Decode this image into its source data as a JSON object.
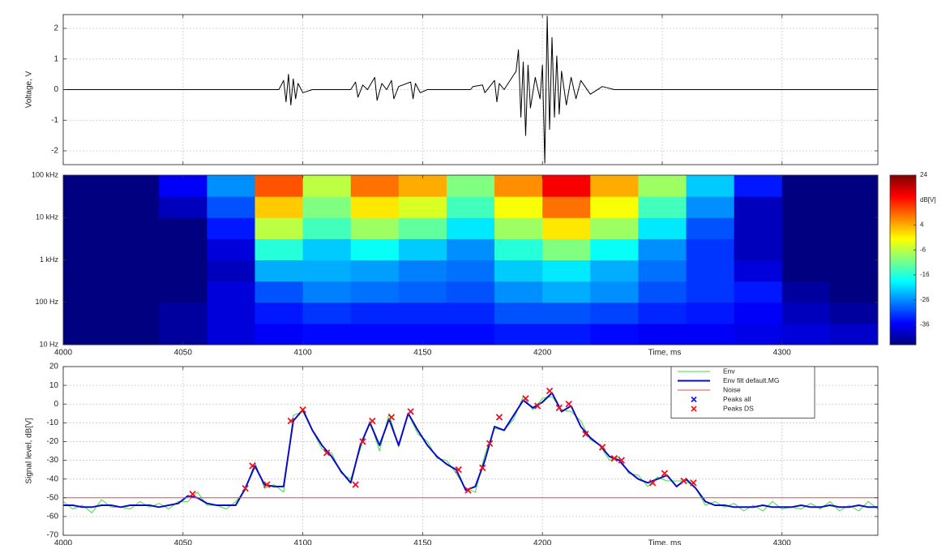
{
  "chart_data": [
    {
      "type": "line",
      "ylabel": "Voltage, V",
      "color": "#000000",
      "x": [
        4000,
        4090,
        4092,
        4093,
        4094,
        4095,
        4096,
        4097,
        4098,
        4100,
        4104,
        4120,
        4122,
        4123,
        4125,
        4127,
        4130,
        4131,
        4133,
        4135,
        4137,
        4138,
        4140,
        4145,
        4146,
        4147,
        4149,
        4152,
        4170,
        4171,
        4175,
        4176,
        4180,
        4181,
        4182,
        4184,
        4189,
        4190,
        4191,
        4192,
        4193,
        4194,
        4195,
        4197,
        4199,
        4200,
        4201,
        4202,
        4203,
        4204,
        4205,
        4206,
        4207,
        4208,
        4210,
        4212,
        4214,
        4216,
        4220,
        4225,
        4230,
        4340
      ],
      "values": [
        0,
        0,
        0.3,
        -0.4,
        0.5,
        -0.5,
        0.35,
        -0.3,
        0.2,
        -0.1,
        0,
        0,
        0.25,
        -0.25,
        0.15,
        0,
        0.4,
        -0.35,
        0.2,
        0,
        0.3,
        -0.3,
        0.1,
        0.25,
        -0.3,
        0.2,
        -0.1,
        0,
        0,
        0.1,
        0.15,
        -0.1,
        0.3,
        -0.4,
        0.2,
        0,
        0.6,
        1.3,
        -0.9,
        0.9,
        -1.5,
        0.8,
        -0.6,
        0.4,
        -0.3,
        0.8,
        -2.4,
        2.4,
        -1.3,
        1.7,
        -0.9,
        1.1,
        -0.8,
        0.6,
        -0.5,
        0.4,
        -0.3,
        0.3,
        -0.15,
        0.1,
        0,
        0
      ],
      "xlim": [
        4000,
        4340
      ],
      "ylim": [
        -2.45,
        2.45
      ],
      "xticks": [
        4000,
        4050,
        4100,
        4150,
        4200,
        4250,
        4300
      ],
      "xticklabels": false,
      "yticks": [
        -2,
        -1,
        0,
        1,
        2
      ],
      "grid": true
    },
    {
      "type": "heatmap",
      "xlabel": "Time, ms",
      "ylog": true,
      "colormap": "jet",
      "xbins": [
        4000,
        4020,
        4040,
        4060,
        4080,
        4100,
        4120,
        4140,
        4160,
        4180,
        4200,
        4220,
        4240,
        4260,
        4280,
        4300,
        4320,
        4340
      ],
      "ybins": [
        10,
        31.6,
        100,
        316,
        1000,
        3160,
        10000,
        31600,
        100000
      ],
      "values": [
        [
          -44,
          -44,
          -42,
          -38,
          -36,
          -35,
          -35,
          -35,
          -35,
          -34,
          -34,
          -35,
          -36,
          -36,
          -37,
          -38,
          -39
        ],
        [
          -44,
          -44,
          -42,
          -38,
          -34,
          -32,
          -33,
          -33,
          -33,
          -30,
          -30,
          -31,
          -33,
          -34,
          -36,
          -40,
          -42
        ],
        [
          -44,
          -44,
          -44,
          -38,
          -30,
          -27,
          -28,
          -29,
          -30,
          -26,
          -24,
          -26,
          -30,
          -32,
          -34,
          -42,
          -44
        ],
        [
          -44,
          -44,
          -44,
          -40,
          -24,
          -24,
          -25,
          -27,
          -28,
          -22,
          -20,
          -24,
          -28,
          -32,
          -38,
          -44,
          -44
        ],
        [
          -44,
          -44,
          -44,
          -38,
          -16,
          -22,
          -18,
          -22,
          -26,
          -16,
          -10,
          -18,
          -26,
          -32,
          -40,
          -44,
          -44
        ],
        [
          -44,
          -44,
          -44,
          -34,
          -6,
          -14,
          -8,
          -12,
          -20,
          -8,
          0,
          -8,
          -20,
          -30,
          -40,
          -44,
          -44
        ],
        [
          -44,
          -44,
          -40,
          -30,
          2,
          -10,
          0,
          -4,
          -14,
          -2,
          8,
          -2,
          -14,
          -26,
          -40,
          -44,
          -44
        ],
        [
          -44,
          -44,
          -36,
          -26,
          10,
          -6,
          8,
          4,
          -10,
          6,
          16,
          4,
          -8,
          -22,
          -34,
          -44,
          -44
        ]
      ],
      "xlim": [
        4000,
        4340
      ],
      "ylim": [
        10,
        100000
      ],
      "xticks": [
        4000,
        4050,
        4100,
        4150,
        4200,
        4300
      ],
      "yticks": [
        {
          "value": 10,
          "label": "10 Hz"
        },
        {
          "value": 100,
          "label": "100 Hz"
        },
        {
          "value": 1000,
          "label": "1 kHz"
        },
        {
          "value": 10000,
          "label": "10 kHz"
        },
        {
          "value": 100000,
          "label": "100 kHz"
        }
      ],
      "clim": [
        -44,
        24
      ],
      "colorbar_label": "dB[V]",
      "cticks": [
        24,
        4,
        -6,
        -16,
        -26,
        -36
      ]
    },
    {
      "type": "line",
      "xlabel": "Time, ms",
      "ylabel": "Signal level, dB[V]",
      "x": [
        4000,
        4004,
        4008,
        4012,
        4016,
        4020,
        4024,
        4028,
        4032,
        4036,
        4040,
        4044,
        4048,
        4052,
        4056,
        4060,
        4064,
        4068,
        4072,
        4076,
        4080,
        4084,
        4088,
        4092,
        4096,
        4100,
        4104,
        4108,
        4112,
        4116,
        4120,
        4124,
        4128,
        4132,
        4136,
        4140,
        4144,
        4148,
        4152,
        4156,
        4160,
        4164,
        4168,
        4172,
        4176,
        4180,
        4184,
        4188,
        4192,
        4196,
        4200,
        4204,
        4208,
        4212,
        4216,
        4220,
        4224,
        4228,
        4232,
        4236,
        4240,
        4244,
        4248,
        4252,
        4256,
        4260,
        4264,
        4268,
        4272,
        4276,
        4280,
        4284,
        4288,
        4292,
        4296,
        4300,
        4304,
        4308,
        4312,
        4316,
        4320,
        4324,
        4328,
        4332,
        4336,
        4340
      ],
      "series": [
        {
          "name": "Env",
          "color": "#3ee03e",
          "values": [
            -52,
            -56,
            -54,
            -58,
            -51,
            -55,
            -55,
            -56,
            -52,
            -55,
            -53,
            -56,
            -52,
            -52,
            -47,
            -54,
            -54,
            -56,
            -52,
            -46,
            -31,
            -45,
            -43,
            -47,
            -6,
            -4,
            -14,
            -24,
            -26,
            -37,
            -40,
            -24,
            -9,
            -25,
            -5,
            -23,
            -5,
            -16,
            -20,
            -29,
            -30,
            -37,
            -45,
            -47,
            -27,
            -13,
            -14,
            -8,
            4,
            -3,
            3,
            4,
            -3,
            -4,
            -9,
            -19,
            -22,
            -30,
            -28,
            -37,
            -38,
            -44,
            -39,
            -41,
            -41,
            -41,
            -45,
            -54,
            -52,
            -55,
            -53,
            -57,
            -54,
            -57,
            -52,
            -56,
            -55,
            -56,
            -53,
            -56,
            -52,
            -57,
            -54,
            -57,
            -52,
            -56
          ]
        },
        {
          "name": "Env filt default.MG",
          "color": "#0a0ac8",
          "values": [
            -54,
            -54,
            -55,
            -55,
            -54,
            -54,
            -55,
            -54,
            -54,
            -54,
            -55,
            -54,
            -53,
            -49,
            -50,
            -53,
            -54,
            -54,
            -54,
            -45,
            -33,
            -43,
            -44,
            -44,
            -9,
            -3,
            -14,
            -22,
            -28,
            -36,
            -42,
            -22,
            -10,
            -22,
            -8,
            -22,
            -5,
            -14,
            -22,
            -28,
            -32,
            -35,
            -46,
            -44,
            -30,
            -12,
            -14,
            -6,
            2,
            -2,
            1,
            6,
            -4,
            -1,
            -12,
            -18,
            -22,
            -28,
            -30,
            -36,
            -40,
            -42,
            -40,
            -38,
            -44,
            -40,
            -45,
            -52,
            -54,
            -54,
            -55,
            -55,
            -55,
            -54,
            -55,
            -55,
            -55,
            -54,
            -55,
            -55,
            -54,
            -55,
            -55,
            -54,
            -55,
            -55
          ]
        },
        {
          "name": "Noise",
          "color": "#e84a4a",
          "x": [
            4000,
            4340
          ],
          "values": [
            -50,
            -50
          ]
        },
        {
          "name": "Peaks all",
          "color": "#1010ff",
          "marker": "x",
          "x": [
            4054,
            4076,
            4079,
            4085,
            4095,
            4100,
            4110,
            4122,
            4125,
            4129,
            4137,
            4145,
            4165,
            4169,
            4175,
            4178,
            4182,
            4193,
            4198,
            4203,
            4207,
            4211,
            4218,
            4225,
            4230,
            4233,
            4246,
            4251,
            4259,
            4263
          ],
          "values": [
            -48,
            -45,
            -33,
            -43,
            -9,
            -3,
            -26,
            -43,
            -20,
            -9,
            -7,
            -4,
            -35,
            -46,
            -34,
            -21,
            -7,
            3,
            -1,
            7,
            -2,
            0,
            -16,
            -23,
            -29,
            -30,
            -42,
            -37,
            -41,
            -42
          ]
        },
        {
          "name": "Peaks DS",
          "color": "#ff1010",
          "marker": "x",
          "x": [
            4054,
            4076,
            4079,
            4085,
            4095,
            4100,
            4110,
            4122,
            4125,
            4129,
            4137,
            4145,
            4165,
            4169,
            4175,
            4178,
            4182,
            4193,
            4198,
            4203,
            4207,
            4211,
            4218,
            4225,
            4230,
            4233,
            4246,
            4251,
            4259,
            4263
          ],
          "values": [
            -48,
            -45,
            -33,
            -43,
            -9,
            -3,
            -26,
            -43,
            -20,
            -9,
            -7,
            -4,
            -35,
            -46,
            -34,
            -21,
            -7,
            3,
            -1,
            7,
            -2,
            0,
            -16,
            -23,
            -29,
            -30,
            -42,
            -37,
            -41,
            -42
          ]
        }
      ],
      "xlim": [
        4000,
        4340
      ],
      "ylim": [
        -70,
        20
      ],
      "xticks": [
        4000,
        4050,
        4100,
        4150,
        4200,
        4300
      ],
      "yticks": [
        -70,
        -60,
        -50,
        -40,
        -30,
        -20,
        -10,
        0,
        10,
        20
      ],
      "grid": true,
      "legend": "upper right"
    }
  ]
}
